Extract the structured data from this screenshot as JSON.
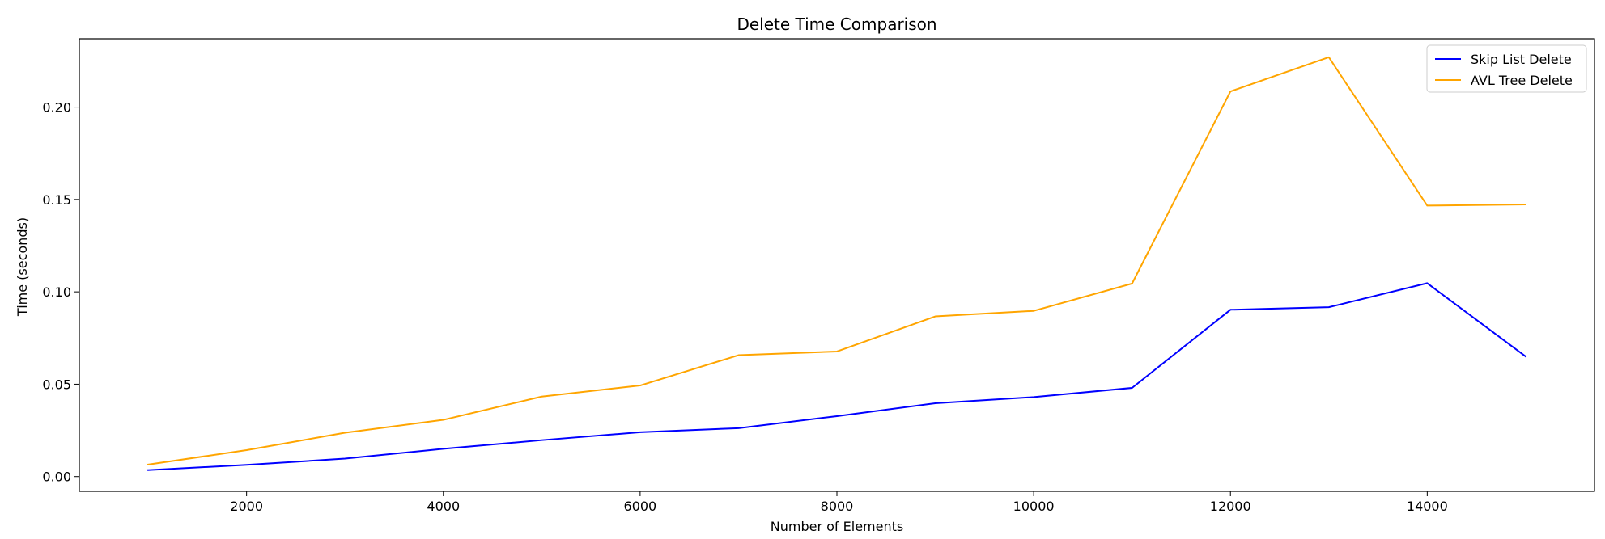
{
  "chart_data": {
    "type": "line",
    "title": "Delete Time Comparison",
    "xlabel": "Number of Elements",
    "ylabel": "Time (seconds)",
    "xlim": [
      300,
      15700
    ],
    "ylim": [
      -0.008,
      0.237
    ],
    "xticks": [
      2000,
      4000,
      6000,
      8000,
      10000,
      12000,
      14000
    ],
    "xtick_labels": [
      "2000",
      "4000",
      "6000",
      "8000",
      "10000",
      "12000",
      "14000"
    ],
    "yticks": [
      0.0,
      0.05,
      0.1,
      0.15,
      0.2
    ],
    "ytick_labels": [
      "0.00",
      "0.05",
      "0.10",
      "0.15",
      "0.20"
    ],
    "grid": false,
    "legend_position": "top-right",
    "x": [
      1000,
      2000,
      3000,
      4000,
      5000,
      6000,
      7000,
      8000,
      9000,
      10000,
      11000,
      12000,
      13000,
      14000,
      15000
    ],
    "series": [
      {
        "name": "Skip List Delete",
        "color": "#0000ff",
        "values": [
          0.0035,
          0.0063,
          0.0097,
          0.015,
          0.0197,
          0.024,
          0.0262,
          0.0327,
          0.0397,
          0.043,
          0.048,
          0.0903,
          0.0917,
          0.1047,
          0.065
        ]
      },
      {
        "name": "AVL Tree Delete",
        "color": "#ffa500",
        "values": [
          0.0065,
          0.0143,
          0.0237,
          0.0307,
          0.0433,
          0.0493,
          0.0657,
          0.0677,
          0.0867,
          0.0897,
          0.1045,
          0.2085,
          0.227,
          0.1467,
          0.1473
        ]
      }
    ]
  }
}
